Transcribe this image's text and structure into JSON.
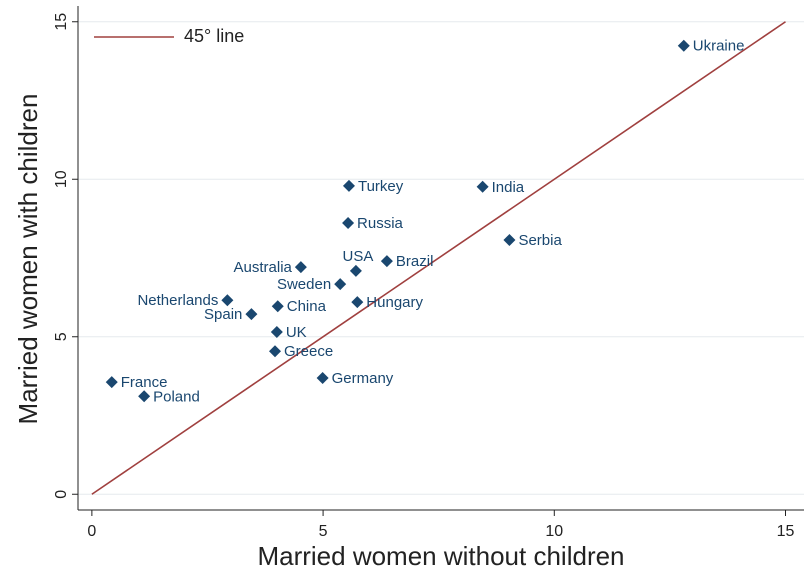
{
  "chart_data": {
    "type": "scatter",
    "x_label": "Married women without children",
    "y_label": "Married women with children",
    "xlim": [
      -0.3,
      15.4
    ],
    "ylim": [
      -0.5,
      15.5
    ],
    "xticks": [
      0,
      5,
      10,
      15
    ],
    "yticks": [
      0,
      5,
      10,
      15
    ],
    "grid": true,
    "legend_position": "top-left",
    "series": [
      {
        "color": "#1a476f",
        "labels": [
          "Ukraine",
          "Turkey",
          "India",
          "Russia",
          "Serbia",
          "Brazil",
          "USA",
          "Australia",
          "Sweden",
          "Netherlands",
          "China",
          "Hungary",
          "Spain",
          "UK",
          "Greece",
          "France",
          "Poland",
          "Germany"
        ],
        "x": [
          12.8,
          5.56,
          8.45,
          5.54,
          9.03,
          6.38,
          5.71,
          4.52,
          5.37,
          2.93,
          4.02,
          5.74,
          3.45,
          4.0,
          3.96,
          0.43,
          1.13,
          4.99
        ],
        "values": [
          14.24,
          9.79,
          9.76,
          8.61,
          8.07,
          7.4,
          7.09,
          7.21,
          6.67,
          6.16,
          5.97,
          6.1,
          5.72,
          5.15,
          4.54,
          3.56,
          3.11,
          3.69
        ]
      }
    ],
    "reference_line": {
      "name": "45° line",
      "color": "#a0403f",
      "x": [
        0,
        15
      ],
      "values": [
        0,
        15
      ]
    }
  }
}
